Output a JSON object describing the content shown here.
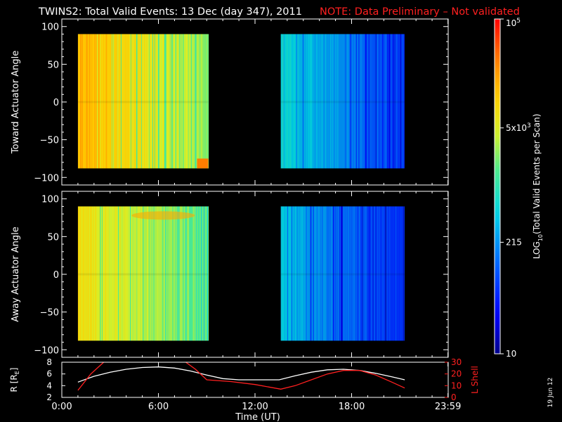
{
  "title": {
    "main": "TWINS2: Total Valid Events: 13 Dec (day 347), 2011",
    "note": "NOTE: Data Preliminary – Not validated"
  },
  "colors": {
    "background": "#000000",
    "axes": "#ffffff",
    "note": "#ff2020",
    "lshell": "#ff2020",
    "radius": "#ffffff"
  },
  "colorbar": {
    "label_main": "LOG",
    "label_sub": "10",
    "label_rest": "(Total Valid Events per Scan)",
    "ticks": [
      {
        "value": 10,
        "base": "10",
        "exp": ""
      },
      {
        "value": 215,
        "base": "215",
        "exp": ""
      },
      {
        "value": 5000,
        "base": "5x10",
        "exp": "3"
      },
      {
        "value": 100000,
        "base": "10",
        "exp": "5"
      }
    ],
    "range": [
      10,
      100000
    ],
    "scale": "log"
  },
  "time_axis": {
    "label": "Time (UT)",
    "ticks": [
      {
        "hour": 0,
        "label": "0:00"
      },
      {
        "hour": 6,
        "label": "6:00"
      },
      {
        "hour": 12,
        "label": "12:00"
      },
      {
        "hour": 18,
        "label": "18:00"
      },
      {
        "hour": 23.983,
        "label": "23:59"
      }
    ],
    "range": [
      0,
      24
    ]
  },
  "date_stamp": "19 Jun 12",
  "chart_data": [
    {
      "type": "heatmap",
      "ylabel": "Toward Actuator Angle",
      "ylim": [
        -110,
        110
      ],
      "yticks": [
        -100,
        -50,
        0,
        50,
        100
      ],
      "data_blocks": [
        {
          "start_hour": 1.0,
          "end_hour": 9.1,
          "angle_range": [
            -88,
            90
          ],
          "level_start": 0.82,
          "level_end": 0.6
        },
        {
          "start_hour": 13.6,
          "end_hour": 21.3,
          "angle_range": [
            -88,
            90
          ],
          "level_start": 0.45,
          "level_end": 0.2
        }
      ]
    },
    {
      "type": "heatmap",
      "ylabel": "Away Actuator Angle",
      "ylim": [
        -110,
        110
      ],
      "yticks": [
        -100,
        -50,
        0,
        50,
        100
      ],
      "data_blocks": [
        {
          "start_hour": 1.0,
          "end_hour": 9.1,
          "angle_range": [
            -88,
            90
          ],
          "level_start": 0.72,
          "level_end": 0.55
        },
        {
          "start_hour": 13.6,
          "end_hour": 21.3,
          "angle_range": [
            -88,
            90
          ],
          "level_start": 0.4,
          "level_end": 0.18
        }
      ]
    },
    {
      "type": "line",
      "ylabel_left": "R [R",
      "ylabel_left_sub": "E",
      "ylabel_left_end": "]",
      "ylim_left": [
        2,
        8
      ],
      "yticks_left": [
        2,
        4,
        6,
        8
      ],
      "ylabel_right": "L Shell",
      "ylim_right": [
        0,
        30
      ],
      "yticks_right": [
        0,
        10,
        20,
        30
      ],
      "series": [
        {
          "color": "#ffffff",
          "x": [
            1.0,
            2.0,
            3.0,
            4.0,
            5.0,
            6.0,
            7.0,
            8.0,
            9.0,
            10.0,
            11.0,
            12.0,
            13.0,
            13.5,
            14.5,
            15.5,
            16.5,
            17.5,
            18.5,
            19.5,
            20.5,
            21.3
          ],
          "y": [
            4.6,
            5.6,
            6.3,
            6.8,
            7.1,
            7.2,
            7.0,
            6.5,
            5.8,
            5.2,
            5.0,
            5.0,
            5.0,
            5.0,
            5.7,
            6.3,
            6.7,
            6.8,
            6.6,
            6.1,
            5.5,
            5.0
          ]
        },
        {
          "color": "#ff2020",
          "x": [
            1.0,
            1.8,
            2.6
          ],
          "y": [
            6,
            20,
            30
          ]
        },
        {
          "color": "#ff2020",
          "x": [
            7.7,
            8.3,
            9.0,
            10.5,
            12.0,
            13.6,
            14.5,
            15.5,
            16.5,
            17.5,
            18.5,
            19.5,
            20.5,
            21.3
          ],
          "y": [
            30,
            24,
            15,
            13.5,
            11,
            7,
            10,
            15,
            20,
            23,
            23,
            19,
            13,
            8
          ]
        }
      ]
    }
  ]
}
